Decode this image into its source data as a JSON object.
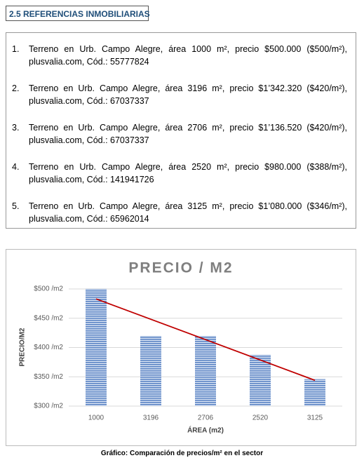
{
  "section_title": "2.5 REFERENCIAS INMOBILIARIAS",
  "references": [
    {
      "number": "1.",
      "text": "Terreno en Urb. Campo Alegre, área 1000 m², precio $500.000 ($500/m²), plusvalia.com, Cód.: 55777824"
    },
    {
      "number": "2.",
      "text": "Terreno en Urb. Campo Alegre, área 3196 m², precio $1’342.320 ($420/m²), plusvalia.com, Cód.: 67037337"
    },
    {
      "number": "3.",
      "text": "Terreno en Urb. Campo Alegre, área 2706 m², precio $1’136.520 ($420/m²), plusvalia.com, Cód.: 67037337"
    },
    {
      "number": "4.",
      "text": "Terreno en Urb. Campo Alegre, área 2520 m², precio $980.000 ($388/m²), plusvalia.com, Cód.: 141941726"
    },
    {
      "number": "5.",
      "text": "Terreno en Urb. Campo Alegre, área 3125 m², precio $1’080.000 ($346/m²), plusvalia.com, Cód.: 65962014"
    }
  ],
  "chart_data": {
    "type": "bar",
    "title": "PRECIO / M2",
    "x_label": "ÁREA (m2)",
    "y_label": "PRECIO/M2",
    "categories": [
      "1000",
      "3196",
      "2706",
      "2520",
      "3125"
    ],
    "values": [
      500,
      420,
      420,
      388,
      346
    ],
    "color": "#5b84c4",
    "trendline": {
      "color": "#c00000",
      "values": [
        483,
        344
      ]
    },
    "ylim": [
      300,
      500
    ],
    "yticks": [
      {
        "value": 300,
        "label": "$300 /m2"
      },
      {
        "value": 350,
        "label": "$350 /m2"
      },
      {
        "value": 400,
        "label": "$400 /m2"
      },
      {
        "value": 450,
        "label": "$450 /m2"
      },
      {
        "value": 500,
        "label": "$500 /m2"
      }
    ],
    "grid": true
  },
  "caption": "Gráfico: Comparación de precios/m² en el sector"
}
